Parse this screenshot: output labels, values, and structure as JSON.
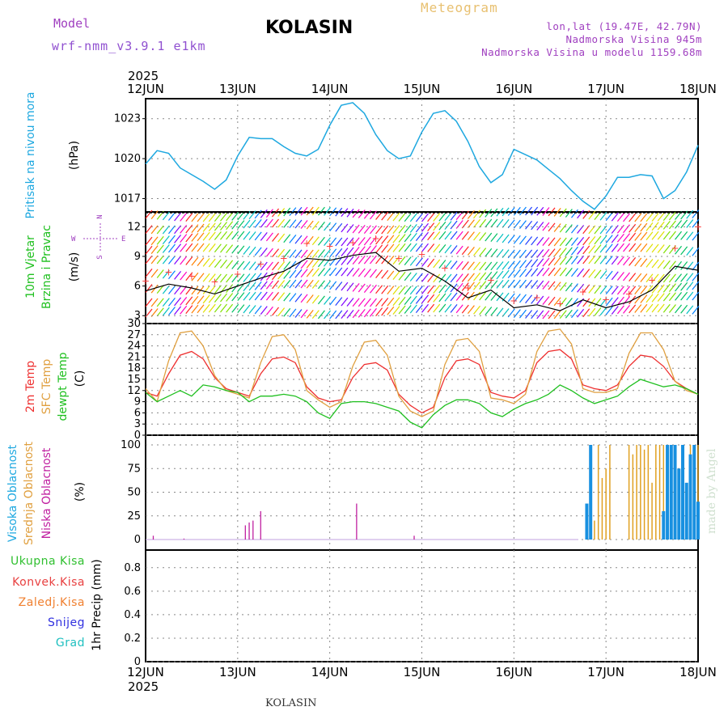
{
  "header": {
    "model_label": "Model",
    "model_version": "wrf-nmm_v3.9.1 e1km",
    "station": "KOLASIN",
    "meteogram_label": "Meteogram",
    "lonlat": "lon,lat (19.47E, 42.79N)",
    "altitude": "Nadmorska Visina 945m",
    "model_altitude": "Nadmorska Visina u modelu 1159.68m",
    "year_top": "2025",
    "year_bottom": "2025",
    "footer_station": "KOLASIN",
    "made_by": "made by Angel"
  },
  "colors": {
    "pressure": "#1ea8e0",
    "temp_2m": "#ee3030",
    "temp_sfc": "#e0a040",
    "dewpoint": "#20c020",
    "cloud_high": "#1890e0",
    "cloud_mid": "#e0a020",
    "cloud_low": "#c020a0",
    "wind_speed": "#000000",
    "gust": "#ff4040"
  },
  "chart_data": [
    {
      "type": "line",
      "panel": "pressure",
      "ylabel_left": "Pritisak na nivou mora",
      "ylabel_unit": "(hPa)",
      "days": [
        "12JUN",
        "13JUN",
        "14JUN",
        "15JUN",
        "16JUN",
        "17JUN",
        "18JUN"
      ],
      "yticks": [
        1017,
        1020,
        1023
      ],
      "ylim": [
        1016.0,
        1024.5
      ],
      "x_hours": [
        0,
        3,
        6,
        9,
        12,
        15,
        18,
        21,
        24,
        27,
        30,
        33,
        36,
        39,
        42,
        45,
        48,
        51,
        54,
        57,
        60,
        63,
        66,
        69,
        72,
        75,
        78,
        81,
        84,
        87,
        90,
        93,
        96,
        99,
        102,
        105,
        108,
        111,
        114,
        117,
        120,
        123,
        126,
        129,
        132,
        135,
        138,
        141,
        144
      ],
      "values": [
        1019.6,
        1020.6,
        1020.4,
        1019.3,
        1018.8,
        1018.3,
        1017.7,
        1018.4,
        1020.2,
        1021.6,
        1021.5,
        1021.5,
        1020.9,
        1020.4,
        1020.2,
        1020.7,
        1022.5,
        1024.0,
        1024.2,
        1023.4,
        1021.8,
        1020.6,
        1020.0,
        1020.2,
        1022.0,
        1023.4,
        1023.6,
        1022.8,
        1021.3,
        1019.4,
        1018.2,
        1018.8,
        1020.7,
        1020.3,
        1019.9,
        1019.2,
        1018.5,
        1017.6,
        1016.8,
        1016.2,
        1017.2,
        1018.6,
        1018.6,
        1018.8,
        1018.7,
        1017.0,
        1017.6,
        1019.0,
        1021.0
      ]
    },
    {
      "type": "line",
      "panel": "wind",
      "ylabel_left_1": "10m Vjetar",
      "ylabel_left_2": "Brzina i Pravac",
      "ylabel_unit": "(m/s)",
      "compass": {
        "n": "N",
        "s": "S",
        "w": "W",
        "e": "E"
      },
      "yticks": [
        3,
        6,
        9,
        12
      ],
      "ylim": [
        2.2,
        13.5
      ],
      "x_hours": [
        0,
        6,
        12,
        18,
        24,
        30,
        36,
        42,
        48,
        54,
        60,
        66,
        72,
        78,
        84,
        90,
        96,
        102,
        108,
        114,
        120,
        126,
        132,
        138,
        144
      ],
      "values": [
        5.5,
        6.2,
        5.8,
        5.2,
        6.0,
        6.8,
        7.5,
        8.8,
        8.6,
        9.1,
        9.4,
        7.5,
        7.8,
        6.5,
        4.8,
        5.6,
        3.8,
        4.1,
        3.5,
        4.6,
        3.8,
        4.4,
        5.6,
        8.0,
        7.6
      ],
      "gust_values": [
        6.5,
        7.4,
        7.0,
        6.4,
        7.2,
        8.2,
        8.8,
        10.3,
        10.0,
        10.4,
        10.8,
        8.8,
        9.2,
        7.8,
        5.8,
        6.6,
        4.5,
        4.8,
        4.2,
        5.4,
        4.6,
        5.2,
        6.6,
        9.8,
        12.0
      ],
      "gust_marker": "+"
    },
    {
      "type": "line",
      "panel": "temperature",
      "ylabel_left_1": "2m Temp",
      "ylabel_left_2": "SFC Temp",
      "ylabel_left_3": "dewpt Temp",
      "ylabel_unit": "(C)",
      "yticks": [
        0,
        3,
        6,
        9,
        12,
        15,
        18,
        21,
        24,
        27,
        30
      ],
      "ylim": [
        0,
        30
      ],
      "x_hours": [
        0,
        3,
        6,
        9,
        12,
        15,
        18,
        21,
        24,
        27,
        30,
        33,
        36,
        39,
        42,
        45,
        48,
        51,
        54,
        57,
        60,
        63,
        66,
        69,
        72,
        75,
        78,
        81,
        84,
        87,
        90,
        93,
        96,
        99,
        102,
        105,
        108,
        111,
        114,
        117,
        120,
        123,
        126,
        129,
        132,
        135,
        138,
        141,
        144
      ],
      "series": [
        {
          "name": "2m Temp",
          "values": [
            11.5,
            10.5,
            16.5,
            21.5,
            22.5,
            20.5,
            15.5,
            12.5,
            11.5,
            10.5,
            16.5,
            20.5,
            21.0,
            19.5,
            13.0,
            10.0,
            9.0,
            9.5,
            15.5,
            19.0,
            19.5,
            17.5,
            11.0,
            8.0,
            6.0,
            7.5,
            15.5,
            20.0,
            20.5,
            19.0,
            11.5,
            10.5,
            10.0,
            12.0,
            19.5,
            22.5,
            23.0,
            20.5,
            13.5,
            12.5,
            12.0,
            13.5,
            18.5,
            21.5,
            21.0,
            18.5,
            14.5,
            12.5,
            11.0
          ]
        },
        {
          "name": "SFC Temp",
          "values": [
            12.5,
            9.0,
            20.0,
            27.5,
            28.0,
            24.0,
            16.0,
            12.0,
            11.0,
            10.0,
            19.5,
            26.5,
            27.0,
            23.0,
            12.0,
            9.5,
            7.5,
            9.0,
            18.5,
            25.0,
            25.5,
            21.5,
            10.5,
            6.5,
            5.0,
            6.5,
            19.0,
            25.5,
            26.0,
            22.5,
            10.0,
            9.5,
            8.5,
            11.0,
            22.5,
            28.0,
            28.5,
            24.5,
            12.5,
            11.5,
            11.5,
            12.5,
            22.0,
            27.5,
            27.5,
            23.0,
            14.5,
            12.0,
            11.0
          ]
        },
        {
          "name": "dewpt Temp",
          "values": [
            11.5,
            9.0,
            10.5,
            12.0,
            10.5,
            13.5,
            13.0,
            12.0,
            11.5,
            9.0,
            10.5,
            10.5,
            11.0,
            10.5,
            9.0,
            6.0,
            4.5,
            8.5,
            9.0,
            9.0,
            8.5,
            7.5,
            6.5,
            3.5,
            2.0,
            5.5,
            8.0,
            9.5,
            9.5,
            8.5,
            6.0,
            5.0,
            7.0,
            8.5,
            9.5,
            11.0,
            13.5,
            12.0,
            10.0,
            8.5,
            9.5,
            10.5,
            13.0,
            15.0,
            14.0,
            13.0,
            13.5,
            12.5,
            11.0
          ]
        }
      ]
    },
    {
      "type": "bar",
      "panel": "clouds",
      "ylabel_left_1": "Visoka Oblacnost",
      "ylabel_left_2": "Srednja Oblacnost",
      "ylabel_left_3": "Niska Oblacnost",
      "ylabel_unit": "(%)",
      "yticks": [
        0,
        25,
        50,
        75,
        100
      ],
      "ylim": [
        0,
        100
      ],
      "series": [
        {
          "name": "Niska Oblacnost",
          "x_hours": [
            2,
            10,
            26,
            27,
            28,
            30,
            55,
            70,
            127,
            131
          ],
          "values": [
            4,
            1,
            15,
            18,
            20,
            30,
            38,
            4,
            2,
            1
          ]
        },
        {
          "name": "Srednja Oblacnost",
          "x_hours": [
            116,
            117,
            118,
            119,
            120,
            121,
            122,
            125,
            126,
            127,
            128,
            129,
            130,
            131,
            132,
            133,
            134,
            135,
            136,
            137,
            138,
            140,
            142,
            143,
            144
          ],
          "values": [
            5,
            20,
            100,
            65,
            75,
            100,
            0,
            0,
            100,
            90,
            100,
            100,
            95,
            100,
            60,
            100,
            100,
            100,
            40,
            100,
            100,
            100,
            100,
            60,
            100
          ]
        },
        {
          "name": "Visoka Oblacnost",
          "x_hours": [
            115,
            116,
            117,
            135,
            136,
            137,
            138,
            139,
            140,
            141,
            142,
            143,
            144
          ],
          "values": [
            38,
            100,
            0,
            30,
            100,
            100,
            100,
            75,
            100,
            60,
            90,
            100,
            40
          ]
        }
      ]
    },
    {
      "type": "bar",
      "panel": "precip",
      "ylabel_unit": "1hr Precip (mm)",
      "legend": [
        "Ukupna Kisa",
        "Konvek.Kisa",
        "Zaledj.Kisa",
        "Snijeg",
        "Grad"
      ],
      "legend_colors": [
        "#30c030",
        "#e84040",
        "#f08030",
        "#3030e0",
        "#20c0c0"
      ],
      "yticks": [
        0,
        0.2,
        0.4,
        0.6,
        0.8
      ],
      "ylim": [
        0,
        0.95
      ],
      "values": []
    }
  ]
}
